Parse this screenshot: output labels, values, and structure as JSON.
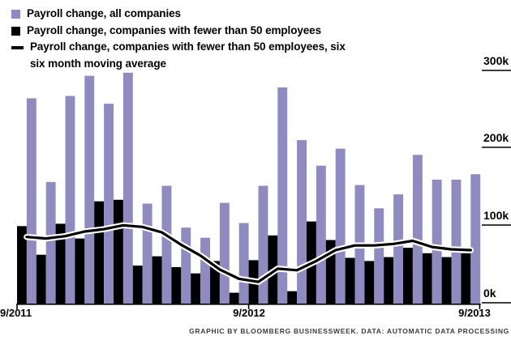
{
  "legend": {
    "items": [
      {
        "id": "all-companies",
        "swatch": "square",
        "color": "#8F8BC1",
        "label": "Payroll change, all companies"
      },
      {
        "id": "small-companies",
        "swatch": "square",
        "color": "#000000",
        "label": "Payroll change, companies with fewer than 50 employees"
      },
      {
        "id": "small-companies-moving-average",
        "swatch": "line",
        "color": "#000000",
        "label": "Payroll change, companies with fewer than 50 employees, six",
        "label2": "six month moving average"
      }
    ]
  },
  "chart_data": {
    "type": "bar",
    "unit": "thousands of jobs",
    "months": [
      "9/2011",
      "10/2011",
      "11/2011",
      "12/2011",
      "1/2012",
      "2/2012",
      "3/2012",
      "4/2012",
      "5/2012",
      "6/2012",
      "7/2012",
      "8/2012",
      "9/2012",
      "10/2012",
      "11/2012",
      "12/2012",
      "1/2013",
      "2/2013",
      "3/2013",
      "4/2013",
      "5/2013",
      "6/2013",
      "7/2013",
      "8/2013"
    ],
    "series": [
      {
        "name": "Payroll change, all companies",
        "type": "bar",
        "color": "#8F8BC1",
        "values": [
          265,
          157,
          268,
          294,
          258,
          298,
          129,
          152,
          98,
          85,
          130,
          104,
          152,
          279,
          211,
          178,
          200,
          153,
          123,
          141,
          192,
          160,
          160,
          167
        ]
      },
      {
        "name": "Payroll change, companies with fewer than 50 employees",
        "type": "bar",
        "color": "#000000",
        "values": [
          100,
          63,
          103,
          84,
          132,
          134,
          49,
          61,
          47,
          39,
          55,
          14,
          56,
          88,
          16,
          106,
          82,
          59,
          55,
          60,
          72,
          65,
          60,
          65
        ]
      },
      {
        "name": "Payroll change, companies with fewer than 50 employees, six month moving average",
        "type": "line",
        "color": "#000000",
        "casing_color": "#FFFFFF",
        "values": [
          86,
          84,
          87,
          93,
          96,
          101,
          99,
          92,
          76,
          62,
          44,
          32,
          28,
          45,
          43,
          55,
          69,
          75,
          75,
          77,
          81,
          73,
          70,
          69
        ]
      }
    ],
    "y_axis": {
      "side": "right",
      "ticks": [
        "300k",
        "200k",
        "100k",
        "0k"
      ],
      "tick_values": [
        300,
        200,
        100,
        0
      ],
      "range": [
        0,
        313
      ]
    },
    "x_axis": {
      "tick_labels": [
        "9/2011",
        "9/2012",
        "9/2013"
      ],
      "tick_month_indices": [
        0,
        12,
        24
      ]
    },
    "grid": false,
    "legend_position": "top-left"
  },
  "footer": {
    "credit": "GRAPHIC BY BLOOMBERG BUSINESSWEEK. DATA: AUTOMATIC DATA PROCESSING"
  }
}
